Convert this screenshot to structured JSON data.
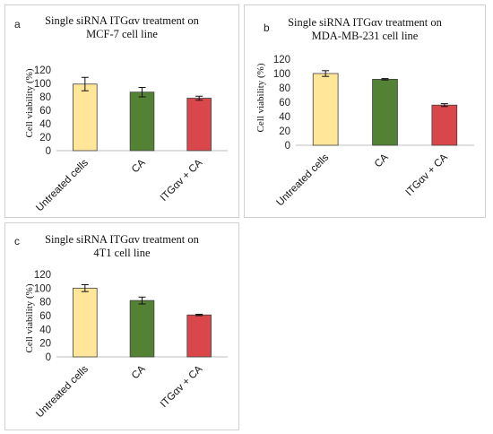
{
  "chart_data": [
    {
      "type": "bar",
      "panel_label": "a",
      "title_lines": [
        "Single siRNA ITGαv treatment on",
        "MCF-7 cell line"
      ],
      "ylabel": "Cell viability  (%)",
      "xlabel": "",
      "categories": [
        "Untreated cells",
        "CA",
        "ITGαv + CA"
      ],
      "values": [
        99,
        87,
        78
      ],
      "errors": [
        10,
        7,
        3
      ],
      "ylim": [
        0,
        120
      ],
      "yticks": [
        "0",
        "20",
        "40",
        "60",
        "80",
        "100",
        "120"
      ],
      "grid": false,
      "colors": [
        "#ffe699",
        "#548235",
        "#d9474a"
      ]
    },
    {
      "type": "bar",
      "panel_label": "b",
      "title_lines": [
        "Single siRNA ITGαv treatment on",
        "MDA-MB-231  cell line"
      ],
      "ylabel": "Cell viability  (%)",
      "xlabel": "",
      "categories": [
        "Untreated cells",
        "CA",
        "ITGαv + CA"
      ],
      "values": [
        100,
        92,
        56
      ],
      "errors": [
        4,
        1,
        2
      ],
      "ylim": [
        0,
        120
      ],
      "yticks": [
        "0",
        "20",
        "40",
        "60",
        "80",
        "100",
        "120"
      ],
      "grid": false,
      "colors": [
        "#ffe699",
        "#548235",
        "#d9474a"
      ]
    },
    {
      "type": "bar",
      "panel_label": "c",
      "title_lines": [
        "Single  siRNA ITGαv treatment on",
        "4T1 cell line"
      ],
      "ylabel": "Cell viability  (%)",
      "xlabel": "",
      "categories": [
        "Untreated cells",
        "CA",
        "ITGαv + CA"
      ],
      "values": [
        100,
        82,
        61
      ],
      "errors": [
        5,
        5,
        1
      ],
      "ylim": [
        0,
        120
      ],
      "yticks": [
        "0",
        "20",
        "40",
        "60",
        "80",
        "100",
        "120"
      ],
      "grid": false,
      "colors": [
        "#ffe699",
        "#548235",
        "#d9474a"
      ]
    }
  ]
}
